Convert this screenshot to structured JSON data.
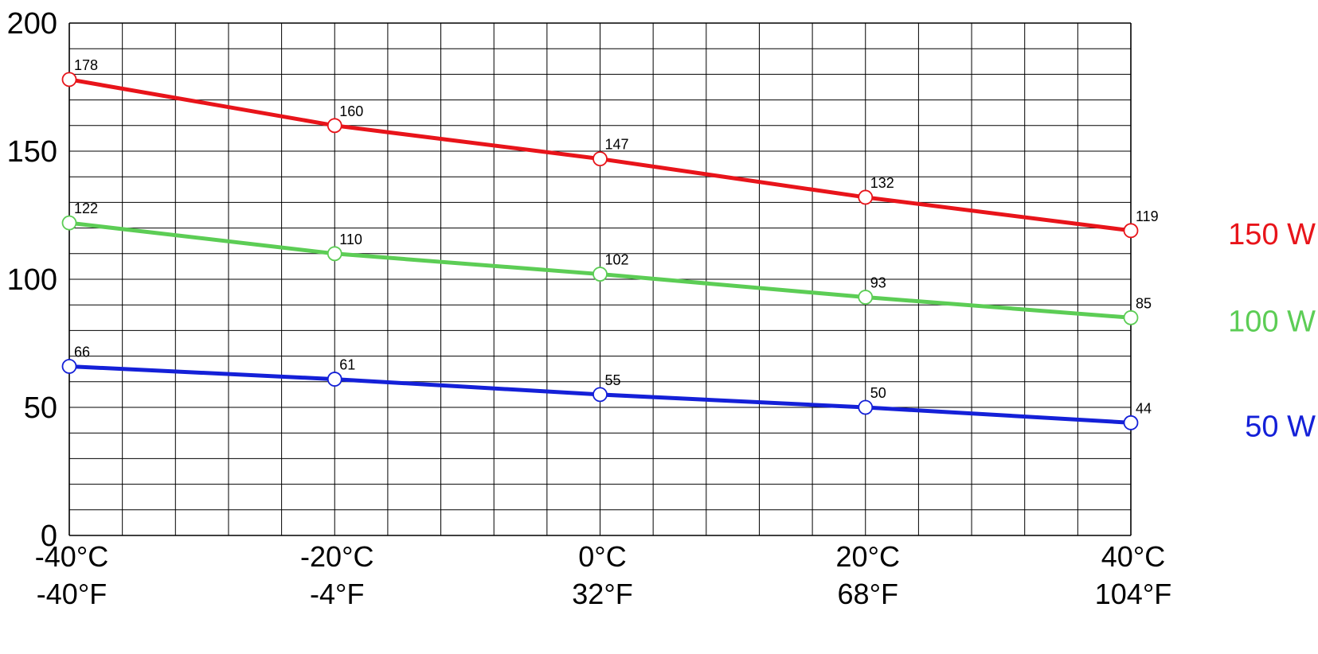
{
  "chart_data": {
    "type": "line",
    "title": "",
    "xlabel": "",
    "ylabel": "",
    "x": [
      -40,
      -20,
      0,
      20,
      40
    ],
    "x_tick_labels_c": [
      "-40°C",
      "-20°C",
      "0°C",
      "20°C",
      "40°C"
    ],
    "x_tick_labels_f": [
      "-40°F",
      "-4°F",
      "32°F",
      "68°F",
      "104°F"
    ],
    "xlim": [
      -40,
      40
    ],
    "y_ticks": [
      0,
      50,
      100,
      150,
      200
    ],
    "ylim": [
      0,
      200
    ],
    "grid": true,
    "series": [
      {
        "name": "150 W",
        "color": "#e8141a",
        "values": [
          178,
          160,
          147,
          132,
          119
        ],
        "point_labels": [
          "178",
          "160",
          "147",
          "132",
          "119"
        ]
      },
      {
        "name": "100 W",
        "color": "#5ccd55",
        "values": [
          122,
          110,
          102,
          93,
          85
        ],
        "point_labels": [
          "122",
          "110",
          "102",
          "93",
          "85"
        ]
      },
      {
        "name": "50 W",
        "color": "#1420d8",
        "values": [
          66,
          61,
          55,
          50,
          44
        ],
        "point_labels": [
          "66",
          "61",
          "55",
          "50",
          "44"
        ]
      }
    ],
    "legend": "labels at right end of each line"
  }
}
